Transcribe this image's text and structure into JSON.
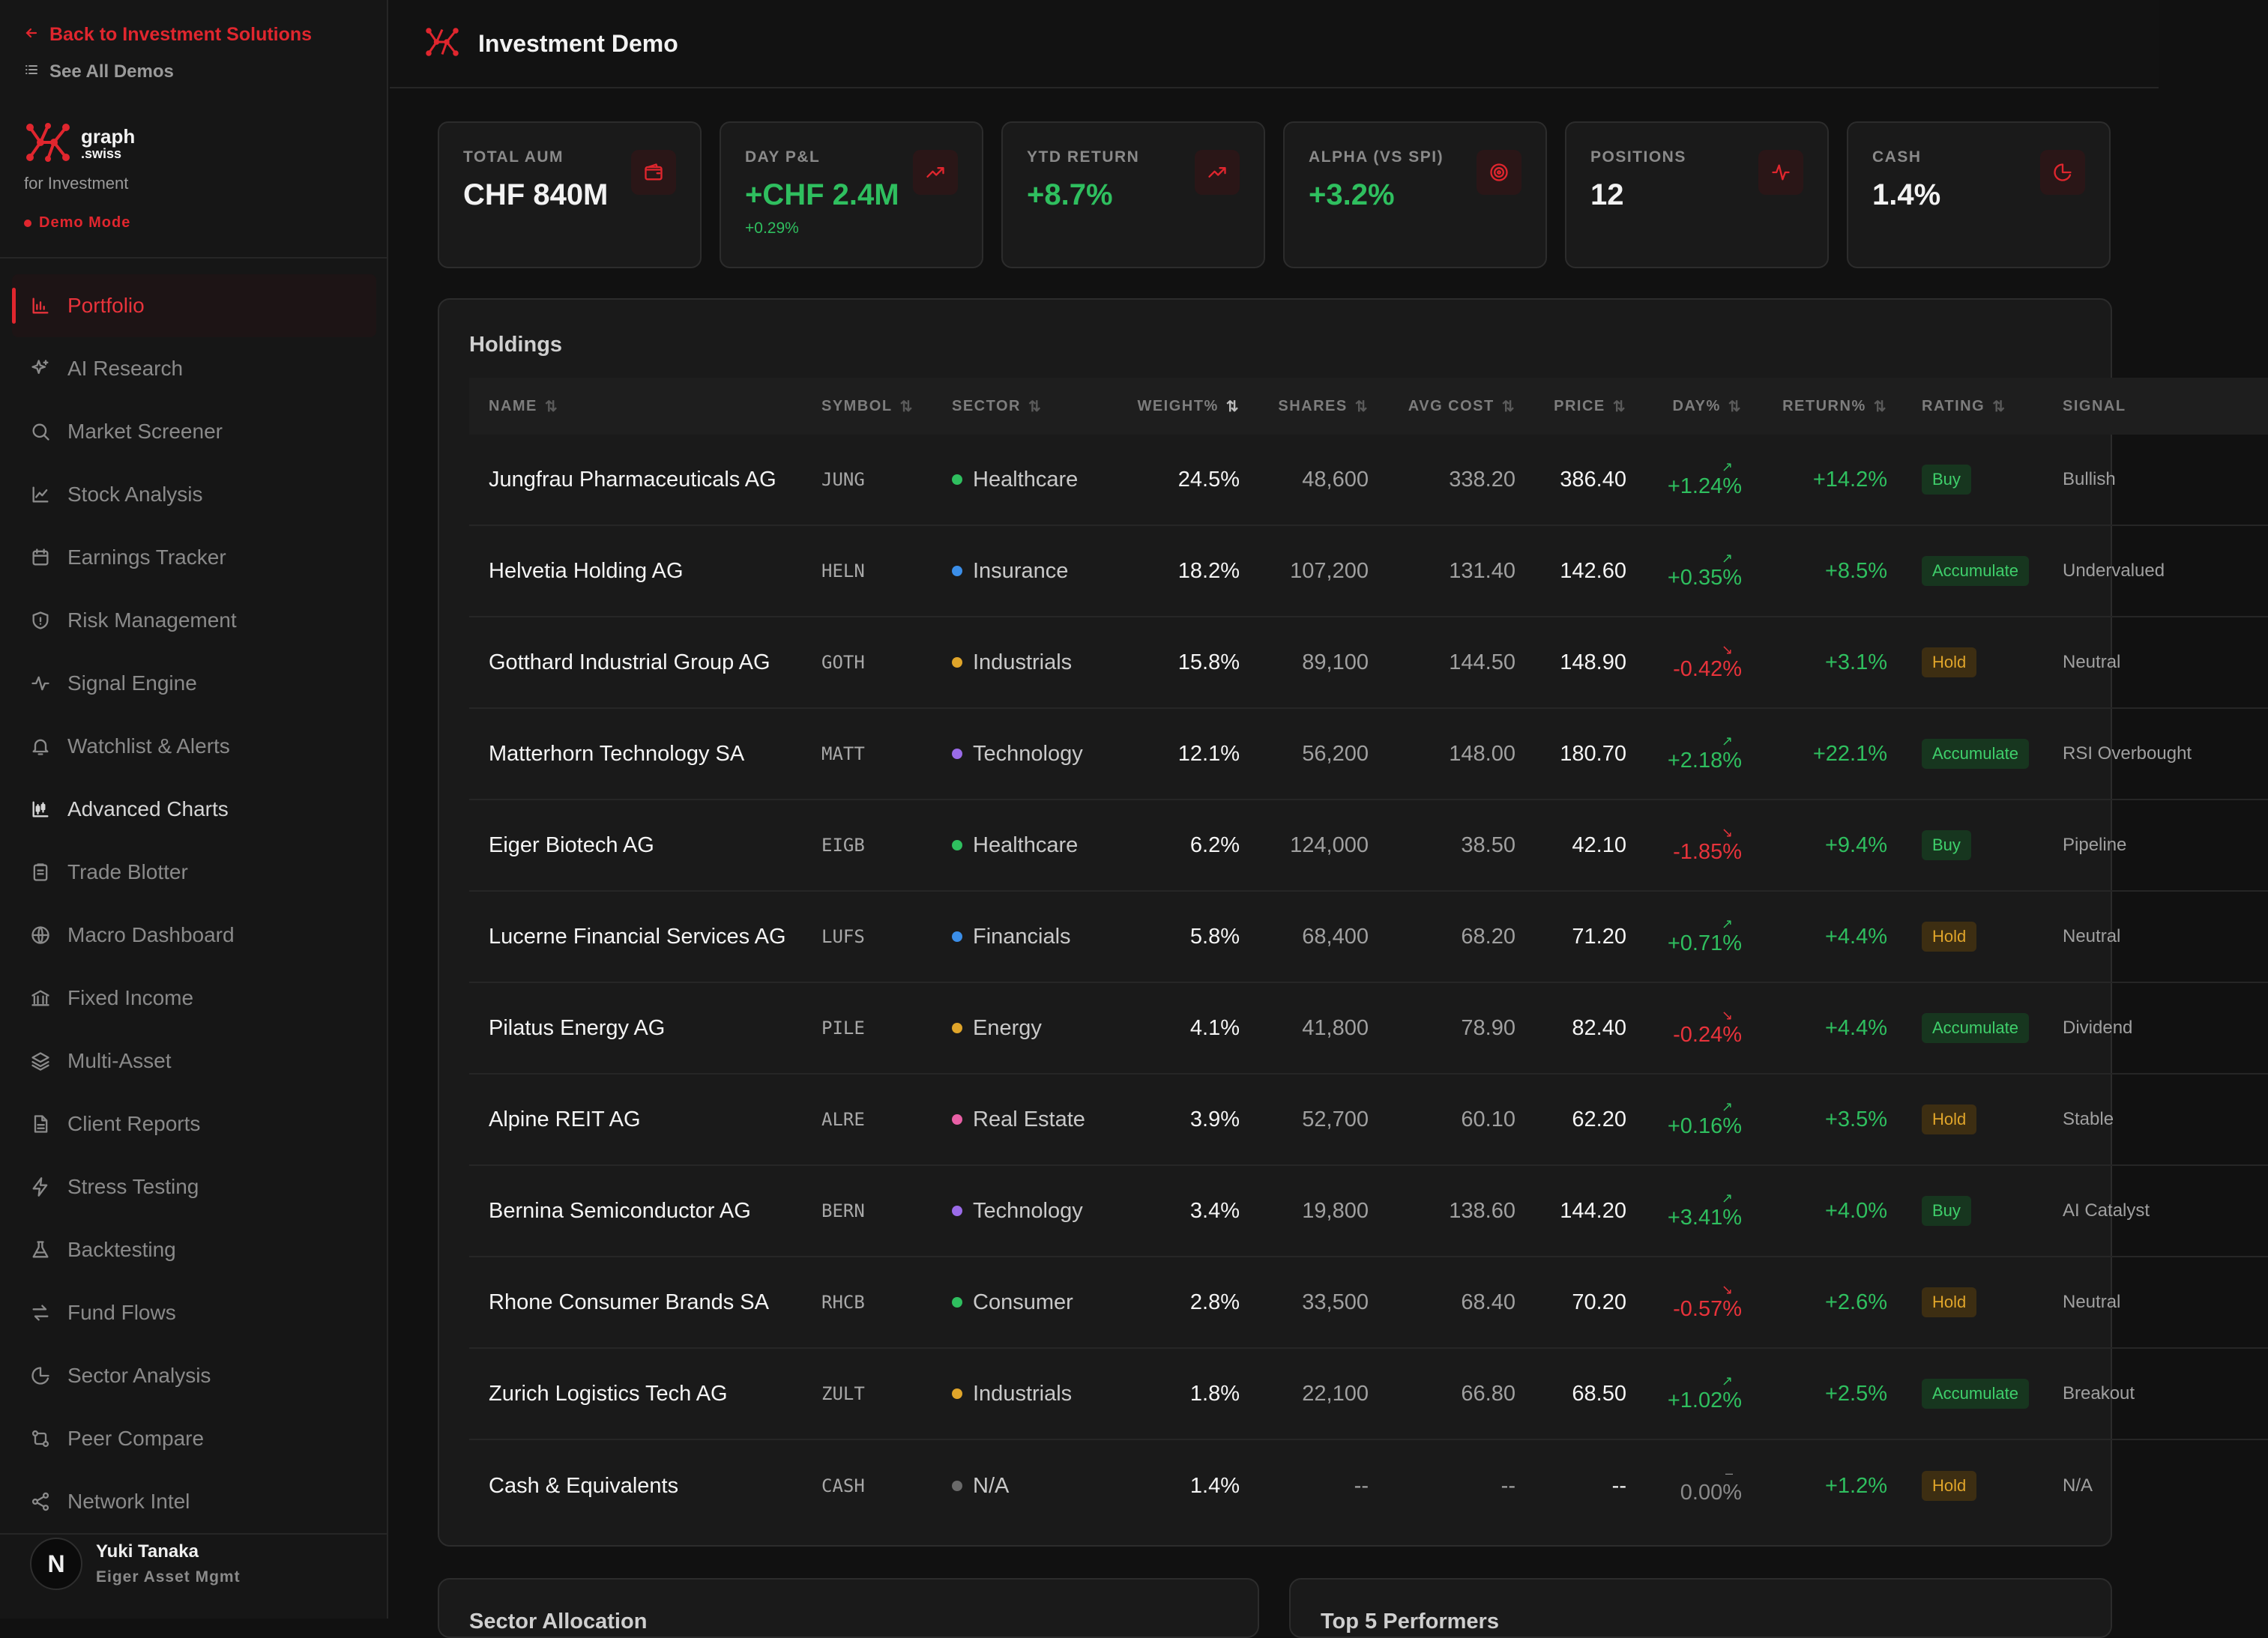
{
  "sidebar": {
    "back_link": "Back to Investment Solutions",
    "all_demos": "See All Demos",
    "brand_name": "graph",
    "brand_sub": ".swiss",
    "brand_for": "for Investment",
    "demo_mode": "Demo Mode",
    "items": [
      {
        "label": "Portfolio",
        "icon": "bar-chart-icon",
        "state": "active"
      },
      {
        "label": "AI Research",
        "icon": "sparkles-icon",
        "state": ""
      },
      {
        "label": "Market Screener",
        "icon": "search-icon",
        "state": ""
      },
      {
        "label": "Stock Analysis",
        "icon": "line-chart-icon",
        "state": ""
      },
      {
        "label": "Earnings Tracker",
        "icon": "calendar-icon",
        "state": ""
      },
      {
        "label": "Risk Management",
        "icon": "shield-icon",
        "state": ""
      },
      {
        "label": "Signal Engine",
        "icon": "activity-icon",
        "state": ""
      },
      {
        "label": "Watchlist & Alerts",
        "icon": "bell-icon",
        "state": ""
      },
      {
        "label": "Advanced Charts",
        "icon": "candlestick-icon",
        "state": "hover"
      },
      {
        "label": "Trade Blotter",
        "icon": "clipboard-icon",
        "state": ""
      },
      {
        "label": "Macro Dashboard",
        "icon": "globe-icon",
        "state": ""
      },
      {
        "label": "Fixed Income",
        "icon": "bank-icon",
        "state": ""
      },
      {
        "label": "Multi-Asset",
        "icon": "layers-icon",
        "state": ""
      },
      {
        "label": "Client Reports",
        "icon": "document-icon",
        "state": ""
      },
      {
        "label": "Stress Testing",
        "icon": "lightning-icon",
        "state": ""
      },
      {
        "label": "Backtesting",
        "icon": "flask-icon",
        "state": ""
      },
      {
        "label": "Fund Flows",
        "icon": "arrows-swap-icon",
        "state": ""
      },
      {
        "label": "Sector Analysis",
        "icon": "pie-chart-icon",
        "state": ""
      },
      {
        "label": "Peer Compare",
        "icon": "git-compare-icon",
        "state": ""
      },
      {
        "label": "Network Intel",
        "icon": "share-icon",
        "state": ""
      }
    ],
    "user": {
      "initial": "N",
      "name": "Yuki Tanaka",
      "org": "Eiger Asset Mgmt"
    }
  },
  "header": {
    "title": "Investment Demo"
  },
  "kpis": [
    {
      "label": "TOTAL AUM",
      "value": "CHF 840M",
      "sub": "",
      "tone": "",
      "icon": "wallet-icon"
    },
    {
      "label": "DAY P&L",
      "value": "+CHF 2.4M",
      "sub": "+0.29%",
      "tone": "pos",
      "icon": "trending-up-icon"
    },
    {
      "label": "YTD RETURN",
      "value": "+8.7%",
      "sub": "",
      "tone": "pos",
      "icon": "trending-up-icon"
    },
    {
      "label": "ALPHA (VS SPI)",
      "value": "+3.2%",
      "sub": "",
      "tone": "pos",
      "icon": "target-icon"
    },
    {
      "label": "POSITIONS",
      "value": "12",
      "sub": "",
      "tone": "",
      "icon": "pulse-icon"
    },
    {
      "label": "CASH",
      "value": "1.4%",
      "sub": "",
      "tone": "",
      "icon": "pie-icon"
    }
  ],
  "holdings": {
    "title": "Holdings",
    "columns": [
      "NAME",
      "SYMBOL",
      "SECTOR",
      "WEIGHT%",
      "SHARES",
      "AVG COST",
      "PRICE",
      "DAY%",
      "RETURN%",
      "RATING",
      "SIGNAL"
    ],
    "rows": [
      {
        "name": "Jungfrau Pharmaceuticals AG",
        "symbol": "JUNG",
        "sector": "Healthcare",
        "sector_color": "#2fbf5f",
        "weight": "24.5%",
        "shares": "48,600",
        "avg_cost": "338.20",
        "price": "386.40",
        "day": "+1.24%",
        "day_dir": "up",
        "ret": "+14.2%",
        "rating": "Buy",
        "signal": "Bullish"
      },
      {
        "name": "Helvetia Holding AG",
        "symbol": "HELN",
        "sector": "Insurance",
        "sector_color": "#3b8ee8",
        "weight": "18.2%",
        "shares": "107,200",
        "avg_cost": "131.40",
        "price": "142.60",
        "day": "+0.35%",
        "day_dir": "up",
        "ret": "+8.5%",
        "rating": "Accumulate",
        "signal": "Undervalued"
      },
      {
        "name": "Gotthard Industrial Group AG",
        "symbol": "GOTH",
        "sector": "Industrials",
        "sector_color": "#e0a52a",
        "weight": "15.8%",
        "shares": "89,100",
        "avg_cost": "144.50",
        "price": "148.90",
        "day": "-0.42%",
        "day_dir": "down",
        "ret": "+3.1%",
        "rating": "Hold",
        "signal": "Neutral"
      },
      {
        "name": "Matterhorn Technology SA",
        "symbol": "MATT",
        "sector": "Technology",
        "sector_color": "#9a6be8",
        "weight": "12.1%",
        "shares": "56,200",
        "avg_cost": "148.00",
        "price": "180.70",
        "day": "+2.18%",
        "day_dir": "up",
        "ret": "+22.1%",
        "rating": "Accumulate",
        "signal": "RSI Overbought"
      },
      {
        "name": "Eiger Biotech AG",
        "symbol": "EIGB",
        "sector": "Healthcare",
        "sector_color": "#2fbf5f",
        "weight": "6.2%",
        "shares": "124,000",
        "avg_cost": "38.50",
        "price": "42.10",
        "day": "-1.85%",
        "day_dir": "down",
        "ret": "+9.4%",
        "rating": "Buy",
        "signal": "Pipeline"
      },
      {
        "name": "Lucerne Financial Services AG",
        "symbol": "LUFS",
        "sector": "Financials",
        "sector_color": "#3b8ee8",
        "weight": "5.8%",
        "shares": "68,400",
        "avg_cost": "68.20",
        "price": "71.20",
        "day": "+0.71%",
        "day_dir": "up",
        "ret": "+4.4%",
        "rating": "Hold",
        "signal": "Neutral"
      },
      {
        "name": "Pilatus Energy AG",
        "symbol": "PILE",
        "sector": "Energy",
        "sector_color": "#e0a52a",
        "weight": "4.1%",
        "shares": "41,800",
        "avg_cost": "78.90",
        "price": "82.40",
        "day": "-0.24%",
        "day_dir": "down",
        "ret": "+4.4%",
        "rating": "Accumulate",
        "signal": "Dividend"
      },
      {
        "name": "Alpine REIT AG",
        "symbol": "ALRE",
        "sector": "Real Estate",
        "sector_color": "#e85fa5",
        "weight": "3.9%",
        "shares": "52,700",
        "avg_cost": "60.10",
        "price": "62.20",
        "day": "+0.16%",
        "day_dir": "up",
        "ret": "+3.5%",
        "rating": "Hold",
        "signal": "Stable"
      },
      {
        "name": "Bernina Semiconductor AG",
        "symbol": "BERN",
        "sector": "Technology",
        "sector_color": "#9a6be8",
        "weight": "3.4%",
        "shares": "19,800",
        "avg_cost": "138.60",
        "price": "144.20",
        "day": "+3.41%",
        "day_dir": "up",
        "ret": "+4.0%",
        "rating": "Buy",
        "signal": "AI Catalyst"
      },
      {
        "name": "Rhone Consumer Brands SA",
        "symbol": "RHCB",
        "sector": "Consumer",
        "sector_color": "#2fbf5f",
        "weight": "2.8%",
        "shares": "33,500",
        "avg_cost": "68.40",
        "price": "70.20",
        "day": "-0.57%",
        "day_dir": "down",
        "ret": "+2.6%",
        "rating": "Hold",
        "signal": "Neutral"
      },
      {
        "name": "Zurich Logistics Tech AG",
        "symbol": "ZULT",
        "sector": "Industrials",
        "sector_color": "#e0a52a",
        "weight": "1.8%",
        "shares": "22,100",
        "avg_cost": "66.80",
        "price": "68.50",
        "day": "+1.02%",
        "day_dir": "up",
        "ret": "+2.5%",
        "rating": "Accumulate",
        "signal": "Breakout"
      },
      {
        "name": "Cash & Equivalents",
        "symbol": "CASH",
        "sector": "N/A",
        "sector_color": "#6a6a6a",
        "weight": "1.4%",
        "shares": "--",
        "avg_cost": "--",
        "price": "--",
        "day": "0.00%",
        "day_dir": "flat",
        "ret": "+1.2%",
        "rating": "Hold",
        "signal": "N/A"
      }
    ]
  },
  "bottom_cards": [
    {
      "title": "Sector Allocation"
    },
    {
      "title": "Top 5 Performers"
    }
  ],
  "colors": {
    "accent": "#e0262e",
    "positive": "#2fbf5f",
    "negative": "#e8333b",
    "hold": "#e0a52a"
  }
}
